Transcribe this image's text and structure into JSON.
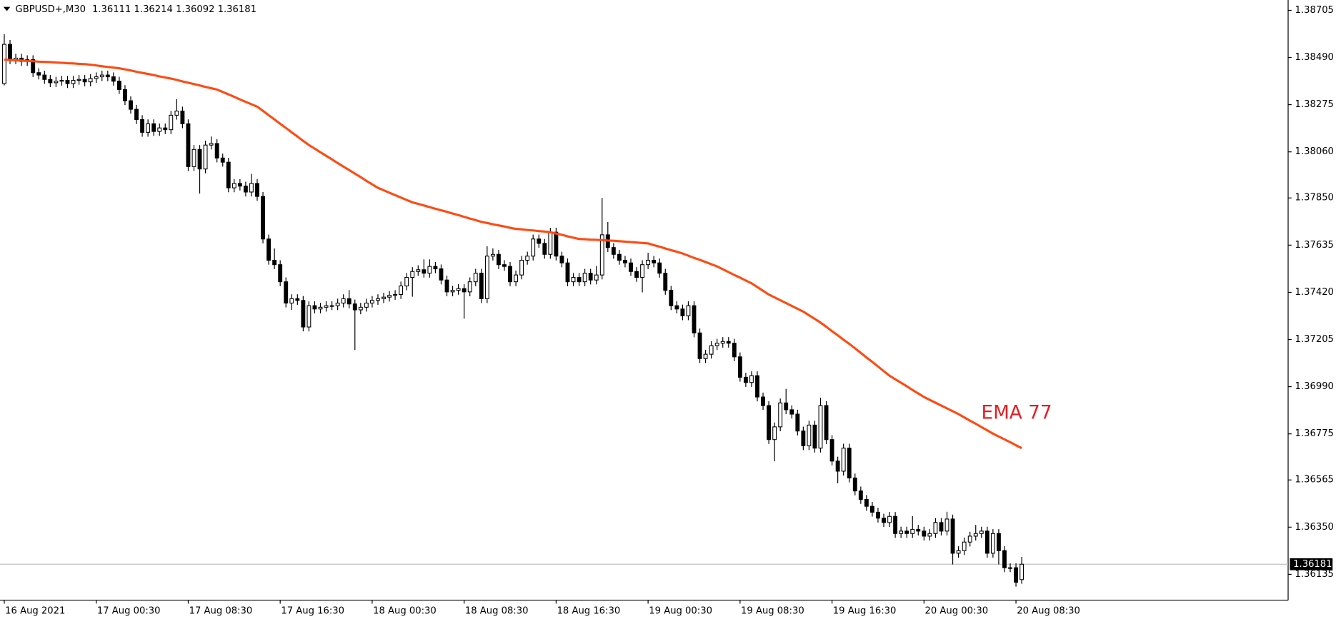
{
  "chart_data": {
    "type": "candlestick",
    "title": "GBPUSD+,M30",
    "categories": [
      "16 Aug 2021",
      null,
      null,
      null,
      null,
      null,
      null,
      null,
      null,
      null,
      null,
      null,
      null,
      null,
      null,
      null,
      "17 Aug 00:30",
      null,
      null,
      null,
      null,
      null,
      null,
      null,
      null,
      null,
      null,
      null,
      null,
      null,
      null,
      null,
      "17 Aug 08:30",
      null,
      null,
      null,
      null,
      null,
      null,
      null,
      null,
      null,
      null,
      null,
      null,
      null,
      null,
      null,
      "17 Aug 16:30",
      null,
      null,
      null,
      null,
      null,
      null,
      null,
      null,
      null,
      null,
      null,
      null,
      null,
      null,
      null,
      "18 Aug 00:30",
      null,
      null,
      null,
      null,
      null,
      null,
      null,
      null,
      null,
      null,
      null,
      null,
      null,
      null,
      null,
      "18 Aug 08:30",
      null,
      null,
      null,
      null,
      null,
      null,
      null,
      null,
      null,
      null,
      null,
      null,
      null,
      null,
      null,
      "18 Aug 16:30",
      null,
      null,
      null,
      null,
      null,
      null,
      null,
      null,
      null,
      null,
      null,
      null,
      null,
      null,
      null,
      "19 Aug 00:30",
      null,
      null,
      null,
      null,
      null,
      null,
      null,
      null,
      null,
      null,
      null,
      null,
      null,
      null,
      null,
      "19 Aug 08:30",
      null,
      null,
      null,
      null,
      null,
      null,
      null,
      null,
      null,
      null,
      null,
      null,
      null,
      null,
      null,
      "19 Aug 16:30",
      null,
      null,
      null,
      null,
      null,
      null,
      null,
      null,
      null,
      null,
      null,
      null,
      null,
      null,
      null,
      "20 Aug 00:30",
      null,
      null,
      null,
      null,
      null,
      null,
      null,
      null,
      null,
      null,
      null,
      null,
      null,
      null,
      null,
      "20 Aug 08:30",
      null
    ],
    "open": [
      1.38371,
      1.3855,
      1.3848,
      1.38487,
      1.38472,
      1.3848,
      1.38421,
      1.3841,
      1.3839,
      1.38375,
      1.38382,
      1.38386,
      1.38371,
      1.38386,
      1.3839,
      1.38379,
      1.38394,
      1.38402,
      1.3841,
      1.38402,
      1.38382,
      1.38344,
      1.38293,
      1.38254,
      1.38207,
      1.38149,
      1.38188,
      1.38153,
      1.38169,
      1.38161,
      1.38227,
      1.38246,
      1.38188,
      1.37993,
      1.38071,
      1.37982,
      1.38091,
      1.38098,
      1.38032,
      1.38013,
      1.37896,
      1.37916,
      1.37904,
      1.37877,
      1.37916,
      1.37857,
      1.37663,
      1.37566,
      1.37546,
      1.37468,
      1.37371,
      1.37391,
      1.37383,
      1.37262,
      1.37359,
      1.37344,
      1.37352,
      1.37359,
      1.37359,
      1.37371,
      1.37391,
      1.37367,
      1.3734,
      1.37352,
      1.37371,
      1.37383,
      1.37391,
      1.37398,
      1.37406,
      1.3741,
      1.37449,
      1.37488,
      1.37515,
      1.37523,
      1.37507,
      1.37538,
      1.37527,
      1.37476,
      1.37422,
      1.37429,
      1.37437,
      1.37422,
      1.37468,
      1.37507,
      1.37391,
      1.37585,
      1.37593,
      1.37546,
      1.37538,
      1.37468,
      1.37499,
      1.37566,
      1.37585,
      1.37663,
      1.37643,
      1.37593,
      1.37694,
      1.37585,
      1.37554,
      1.37468,
      1.37488,
      1.37468,
      1.37507,
      1.37476,
      1.37499,
      1.37682,
      1.37624,
      1.37593,
      1.37566,
      1.37554,
      1.37515,
      1.37488,
      1.37546,
      1.37566,
      1.37554,
      1.37507,
      1.37429,
      1.37359,
      1.37344,
      1.37313,
      1.37359,
      1.37235,
      1.37118,
      1.37138,
      1.37177,
      1.37188,
      1.37196,
      1.37188,
      1.37126,
      1.37033,
      1.37009,
      1.3704,
      1.36943,
      1.36904,
      1.36749,
      1.36807,
      1.36916,
      1.36885,
      1.36865,
      1.36788,
      1.36721,
      1.36815,
      1.3671,
      1.36904,
      1.36749,
      1.36651,
      1.36605,
      1.3671,
      1.36574,
      1.36515,
      1.36476,
      1.36445,
      1.36418,
      1.36391,
      1.36371,
      1.36399,
      1.36321,
      1.36332,
      1.36321,
      1.3634,
      1.36332,
      1.36309,
      1.36321,
      1.36371,
      1.36332,
      1.36387,
      1.36231,
      1.36243,
      1.36282,
      1.36309,
      1.36321,
      1.36332,
      1.36231,
      1.36321,
      1.36243,
      1.36165,
      1.36165,
      1.36111
    ],
    "high": [
      1.38596,
      1.3857,
      1.38507,
      1.38507,
      1.385,
      1.385,
      1.38441,
      1.3843,
      1.3841,
      1.38402,
      1.38406,
      1.38406,
      1.38406,
      1.3841,
      1.3841,
      1.38414,
      1.38422,
      1.3843,
      1.3843,
      1.38422,
      1.38402,
      1.38364,
      1.38313,
      1.38274,
      1.38227,
      1.38208,
      1.38208,
      1.38189,
      1.38189,
      1.38247,
      1.383,
      1.38266,
      1.38208,
      1.38091,
      1.38091,
      1.38111,
      1.3813,
      1.38118,
      1.38052,
      1.38033,
      1.37936,
      1.37936,
      1.37924,
      1.3796,
      1.37936,
      1.37877,
      1.37683,
      1.3762,
      1.37566,
      1.37488,
      1.37411,
      1.37411,
      1.37403,
      1.37379,
      1.37379,
      1.37372,
      1.37379,
      1.37379,
      1.37391,
      1.37411,
      1.3743,
      1.37387,
      1.37372,
      1.37391,
      1.37403,
      1.37411,
      1.37418,
      1.37426,
      1.3743,
      1.37469,
      1.37508,
      1.37535,
      1.37543,
      1.3757,
      1.3757,
      1.37558,
      1.37547,
      1.37496,
      1.37449,
      1.37457,
      1.37457,
      1.37488,
      1.37527,
      1.37527,
      1.3763,
      1.3762,
      1.37613,
      1.37566,
      1.37558,
      1.37519,
      1.37586,
      1.37605,
      1.37683,
      1.37683,
      1.37663,
      1.37714,
      1.37714,
      1.37605,
      1.37574,
      1.37508,
      1.37508,
      1.37527,
      1.37527,
      1.3754,
      1.3785,
      1.3774,
      1.37644,
      1.37613,
      1.37586,
      1.37574,
      1.37535,
      1.37566,
      1.376,
      1.37586,
      1.37574,
      1.37527,
      1.37449,
      1.37379,
      1.37364,
      1.37379,
      1.37379,
      1.37255,
      1.37158,
      1.37197,
      1.37208,
      1.37216,
      1.37216,
      1.37208,
      1.37146,
      1.37053,
      1.3706,
      1.3706,
      1.36963,
      1.36924,
      1.36827,
      1.36936,
      1.3698,
      1.36905,
      1.36885,
      1.36808,
      1.36835,
      1.36835,
      1.3694,
      1.36924,
      1.36769,
      1.36671,
      1.3673,
      1.3673,
      1.36594,
      1.36535,
      1.36496,
      1.36465,
      1.36438,
      1.36411,
      1.36419,
      1.36419,
      1.36352,
      1.36352,
      1.364,
      1.3636,
      1.36352,
      1.36341,
      1.36391,
      1.36391,
      1.3642,
      1.36407,
      1.36263,
      1.36302,
      1.36329,
      1.3636,
      1.36352,
      1.36352,
      1.36341,
      1.36341,
      1.36263,
      1.36185,
      1.36185,
      1.36214
    ],
    "low": [
      1.38363,
      1.3846,
      1.3846,
      1.38452,
      1.38452,
      1.38401,
      1.3839,
      1.3837,
      1.38355,
      1.38355,
      1.38362,
      1.38351,
      1.38351,
      1.38366,
      1.38359,
      1.38359,
      1.38374,
      1.38382,
      1.38382,
      1.38362,
      1.38324,
      1.38273,
      1.38234,
      1.38187,
      1.38129,
      1.38129,
      1.38133,
      1.38133,
      1.38141,
      1.38141,
      1.38207,
      1.38168,
      1.37973,
      1.37973,
      1.3787,
      1.37962,
      1.38071,
      1.38012,
      1.37993,
      1.37876,
      1.37876,
      1.37884,
      1.37857,
      1.37857,
      1.37837,
      1.37643,
      1.37546,
      1.37526,
      1.37448,
      1.37351,
      1.3734,
      1.37363,
      1.37242,
      1.37242,
      1.37324,
      1.37324,
      1.37332,
      1.37339,
      1.37339,
      1.37351,
      1.37347,
      1.37157,
      1.3732,
      1.37332,
      1.37351,
      1.37363,
      1.37371,
      1.37378,
      1.37386,
      1.3739,
      1.37429,
      1.374,
      1.37495,
      1.37487,
      1.37487,
      1.37507,
      1.37456,
      1.37402,
      1.37402,
      1.37409,
      1.373,
      1.37402,
      1.37448,
      1.37371,
      1.37371,
      1.37565,
      1.37526,
      1.37518,
      1.37448,
      1.37448,
      1.37479,
      1.37546,
      1.37565,
      1.37623,
      1.37573,
      1.37573,
      1.37565,
      1.37534,
      1.37448,
      1.37448,
      1.37448,
      1.37448,
      1.37456,
      1.37456,
      1.37479,
      1.37604,
      1.37573,
      1.37546,
      1.37534,
      1.37495,
      1.37468,
      1.3742,
      1.37526,
      1.37534,
      1.37487,
      1.37409,
      1.37339,
      1.37324,
      1.37293,
      1.37293,
      1.37215,
      1.37098,
      1.37098,
      1.37118,
      1.37157,
      1.37168,
      1.37168,
      1.37106,
      1.37013,
      1.36989,
      1.36989,
      1.36923,
      1.36884,
      1.36729,
      1.3665,
      1.36787,
      1.36865,
      1.36845,
      1.36768,
      1.36701,
      1.36701,
      1.3669,
      1.3669,
      1.36729,
      1.36631,
      1.3655,
      1.36585,
      1.36554,
      1.36495,
      1.36456,
      1.36425,
      1.36398,
      1.36371,
      1.36351,
      1.36351,
      1.36301,
      1.36301,
      1.36301,
      1.36301,
      1.36312,
      1.36289,
      1.36289,
      1.36301,
      1.36312,
      1.36312,
      1.3618,
      1.36211,
      1.36223,
      1.36262,
      1.36289,
      1.36301,
      1.36211,
      1.36211,
      1.3618,
      1.36145,
      1.36145,
      1.36079,
      1.36092
    ],
    "close": [
      1.3855,
      1.3848,
      1.38487,
      1.38472,
      1.3848,
      1.38421,
      1.3841,
      1.3839,
      1.38375,
      1.38382,
      1.38386,
      1.38371,
      1.38386,
      1.3839,
      1.38379,
      1.38394,
      1.38402,
      1.3841,
      1.38402,
      1.38382,
      1.38344,
      1.38293,
      1.38254,
      1.38207,
      1.38149,
      1.38188,
      1.38153,
      1.38169,
      1.38161,
      1.38227,
      1.38246,
      1.38188,
      1.37993,
      1.38071,
      1.37982,
      1.38091,
      1.38098,
      1.38032,
      1.38013,
      1.37896,
      1.37916,
      1.37904,
      1.37877,
      1.37916,
      1.37857,
      1.37663,
      1.37566,
      1.37546,
      1.37468,
      1.37371,
      1.37391,
      1.37383,
      1.37262,
      1.37359,
      1.37344,
      1.37352,
      1.37359,
      1.37359,
      1.37371,
      1.37391,
      1.37367,
      1.3734,
      1.37352,
      1.37371,
      1.37383,
      1.37391,
      1.37398,
      1.37406,
      1.3741,
      1.37449,
      1.37488,
      1.37515,
      1.37523,
      1.37507,
      1.37538,
      1.37527,
      1.37476,
      1.37422,
      1.37429,
      1.37437,
      1.37422,
      1.37468,
      1.37507,
      1.37391,
      1.37585,
      1.37593,
      1.37546,
      1.37538,
      1.37468,
      1.37499,
      1.37566,
      1.37585,
      1.37663,
      1.37643,
      1.37593,
      1.37694,
      1.37585,
      1.37554,
      1.37468,
      1.37488,
      1.37468,
      1.37507,
      1.37476,
      1.37499,
      1.37682,
      1.37624,
      1.37593,
      1.37566,
      1.37554,
      1.37515,
      1.37488,
      1.37546,
      1.37566,
      1.37554,
      1.37507,
      1.37429,
      1.37359,
      1.37344,
      1.37313,
      1.37359,
      1.37235,
      1.37118,
      1.37138,
      1.37177,
      1.37188,
      1.37196,
      1.37188,
      1.37126,
      1.37033,
      1.37009,
      1.3704,
      1.36943,
      1.36904,
      1.36749,
      1.36807,
      1.36916,
      1.36885,
      1.36865,
      1.36788,
      1.36721,
      1.36815,
      1.3671,
      1.36904,
      1.36749,
      1.36651,
      1.36605,
      1.3671,
      1.36574,
      1.36515,
      1.36476,
      1.36445,
      1.36418,
      1.36391,
      1.36371,
      1.36399,
      1.36321,
      1.36332,
      1.36321,
      1.3634,
      1.36332,
      1.36309,
      1.36321,
      1.36371,
      1.36332,
      1.36387,
      1.36231,
      1.36243,
      1.36282,
      1.36309,
      1.36321,
      1.36332,
      1.36231,
      1.36321,
      1.36243,
      1.36165,
      1.36165,
      1.36099,
      1.36181
    ],
    "up_color": "#ffffff",
    "down_color": "#000000",
    "ylim": [
      1.36017,
      1.38752
    ],
    "yticks": [
      1.38705,
      {
        "value": 1.3849,
        "label": "1.38490"
      },
      1.38275,
      {
        "value": 1.3806,
        "label": "1.38060"
      },
      {
        "value": 1.3785,
        "label": "1.37850"
      },
      1.37635,
      {
        "value": 1.3742,
        "label": "1.37420"
      },
      1.37205,
      {
        "value": 1.3699,
        "label": "1.36990"
      },
      1.36775,
      1.36565,
      {
        "value": 1.3635,
        "label": "1.36350"
      },
      1.36135
    ],
    "indicator": {
      "name": "EMA 77",
      "color": "#ff4a12",
      "label_color": "#e31e24",
      "values": [
        1.3848,
        1.38479,
        1.38477,
        1.38476,
        1.38474,
        1.38473,
        1.38471,
        1.3847,
        1.38469,
        1.38467,
        1.38466,
        1.38464,
        1.38463,
        1.38461,
        1.3846,
        1.38457,
        1.38454,
        1.3845,
        1.38447,
        1.38444,
        1.38441,
        1.38436,
        1.38431,
        1.38425,
        1.3842,
        1.38415,
        1.3841,
        1.38404,
        1.38399,
        1.38394,
        1.38388,
        1.38381,
        1.38375,
        1.38369,
        1.38363,
        1.38356,
        1.3835,
        1.38344,
        1.38333,
        1.38322,
        1.38311,
        1.38299,
        1.38288,
        1.38277,
        1.38266,
        1.38247,
        1.38227,
        1.38208,
        1.38188,
        1.38169,
        1.38149,
        1.3813,
        1.3811,
        1.38091,
        1.38075,
        1.38058,
        1.38042,
        1.38026,
        1.38009,
        1.37993,
        1.37977,
        1.37961,
        1.37945,
        1.37928,
        1.37912,
        1.37896,
        1.37885,
        1.37874,
        1.37863,
        1.37852,
        1.37841,
        1.3783,
        1.37823,
        1.37816,
        1.37808,
        1.37801,
        1.37794,
        1.37787,
        1.37779,
        1.37772,
        1.37764,
        1.37756,
        1.37749,
        1.37741,
        1.37736,
        1.3773,
        1.37725,
        1.3772,
        1.37714,
        1.37709,
        1.37707,
        1.37704,
        1.37702,
        1.37699,
        1.37697,
        1.37694,
        1.37688,
        1.37682,
        1.37675,
        1.37669,
        1.37663,
        1.37662,
        1.3766,
        1.37659,
        1.37658,
        1.37656,
        1.37655,
        1.37653,
        1.37651,
        1.37649,
        1.37647,
        1.37645,
        1.37643,
        1.37635,
        1.37628,
        1.3762,
        1.37612,
        1.37605,
        1.37597,
        1.37587,
        1.37577,
        1.37568,
        1.37558,
        1.37548,
        1.37538,
        1.37525,
        1.37512,
        1.37499,
        1.37487,
        1.37474,
        1.37461,
        1.37444,
        1.37427,
        1.3741,
        1.37397,
        1.37384,
        1.37371,
        1.37358,
        1.37345,
        1.37332,
        1.37315,
        1.37299,
        1.37282,
        1.37263,
        1.37243,
        1.37224,
        1.37204,
        1.37185,
        1.37165,
        1.37144,
        1.37123,
        1.37103,
        1.37082,
        1.37061,
        1.3704,
        1.37024,
        1.37008,
        1.36992,
        1.36975,
        1.36959,
        1.36943,
        1.3693,
        1.36917,
        1.36904,
        1.36891,
        1.36878,
        1.36865,
        1.3685,
        1.36835,
        1.36821,
        1.36806,
        1.36791,
        1.36776,
        1.36763,
        1.3675,
        1.36737,
        1.36723,
        1.3671
      ]
    }
  }
}
